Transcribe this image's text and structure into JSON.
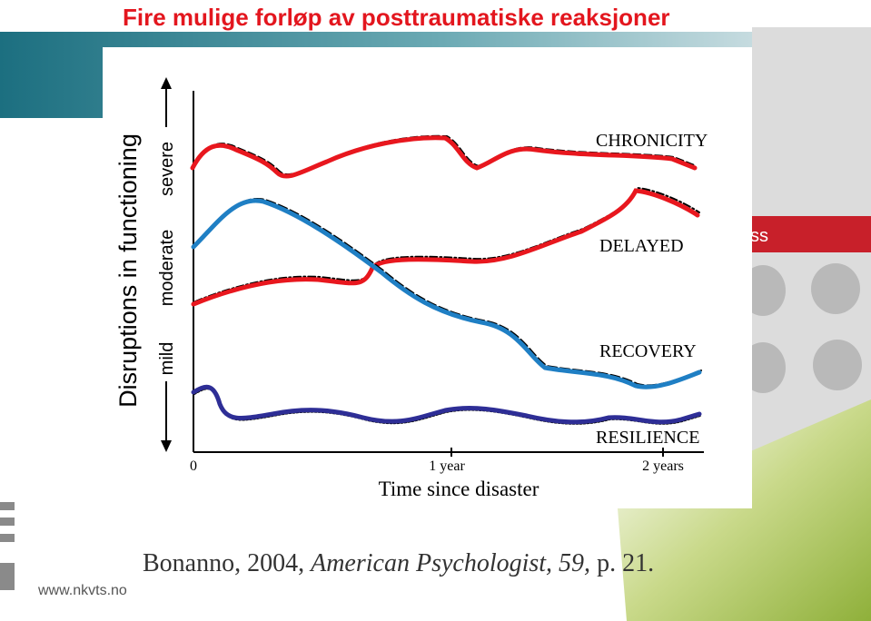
{
  "slide": {
    "title": "Fire mulige forløp av posttraumatiske reaksjoner",
    "side_text": "ss",
    "citation": [
      "Bonanno, 2004, ",
      "American Psychologist, 59,",
      " p. 21."
    ],
    "footer_url": "www.nkvts.no"
  },
  "figure": {
    "y_axis_label": "Disruptions in functioning",
    "y_levels": [
      "mild",
      "moderate",
      "severe"
    ],
    "x_axis_label": "Time since disaster",
    "x_ticks": [
      "0",
      "1 year",
      "2 years"
    ],
    "curve_labels": [
      "CHRONICITY",
      "DELAYED",
      "RECOVERY",
      "RESILIENCE"
    ]
  }
}
